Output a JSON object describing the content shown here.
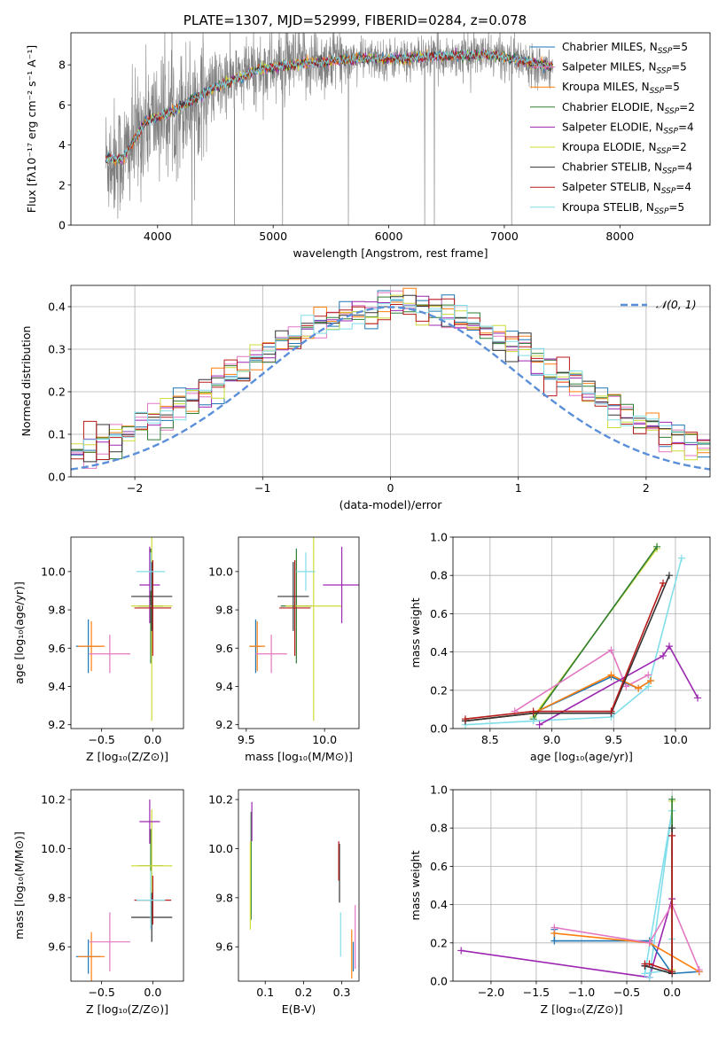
{
  "chart_data": [
    {
      "id": "spectrum",
      "type": "line",
      "title": "PLATE=1307, MJD=52999, FIBERID=0284, z=0.078",
      "xlabel": "wavelength [Angstrom, rest frame]",
      "ylabel": "Flux [fλ10⁻¹⁷ erg cm⁻² s⁻¹ A⁻¹]",
      "xlim": [
        3250,
        8780
      ],
      "ylim": [
        0,
        9.6
      ],
      "xticks": [
        4000,
        5000,
        6000,
        7000,
        8000
      ],
      "yticks": [
        0,
        2,
        4,
        6,
        8
      ],
      "data_trend": {
        "x": [
          3550,
          3700,
          3900,
          4100,
          4500,
          4900,
          5300,
          5700,
          6100,
          6500,
          6900,
          7420
        ],
        "y": [
          3.3,
          3.3,
          5.2,
          5.6,
          6.9,
          7.8,
          8.1,
          8.3,
          8.3,
          8.45,
          8.5,
          7.9
        ]
      },
      "legend": [
        {
          "label": "Chabrier MILES, N",
          "sub": "SSP",
          "n": "=5",
          "color": "#1f77b4"
        },
        {
          "label": "Salpeter MILES, N",
          "sub": "SSP",
          "n": "=5",
          "color": "#e377c2"
        },
        {
          "label": "Kroupa MILES, N",
          "sub": "SSP",
          "n": "=5",
          "color": "#ff7f0e"
        },
        {
          "label": "Chabrier ELODIE, N",
          "sub": "SSP",
          "n": "=2",
          "color": "#2e7d32"
        },
        {
          "label": "Salpeter ELODIE, N",
          "sub": "SSP",
          "n": "=4",
          "color": "#9c27b0"
        },
        {
          "label": "Kroupa ELODIE, N",
          "sub": "SSP",
          "n": "=2",
          "color": "#cddc39"
        },
        {
          "label": "Chabrier STELIB, N",
          "sub": "SSP",
          "n": "=4",
          "color": "#333333"
        },
        {
          "label": "Salpeter STELIB, N",
          "sub": "SSP",
          "n": "=4",
          "color": "#b71c1c"
        },
        {
          "label": "Kroupa STELIB, N",
          "sub": "SSP",
          "n": "=5",
          "color": "#80deea"
        }
      ]
    },
    {
      "id": "residuals",
      "type": "histogram",
      "xlabel": "(data-model)/error",
      "ylabel": "Normed distribution",
      "xlim": [
        -2.5,
        2.5
      ],
      "ylim": [
        0,
        0.45
      ],
      "xticks": [
        -2,
        -1,
        0,
        1,
        2
      ],
      "yticks": [
        0.0,
        0.1,
        0.2,
        0.3,
        0.4
      ],
      "legend_label": "𝒩(0, 1)",
      "normal_curve": {
        "mean": 0,
        "sigma": 1
      },
      "bin_width": 0.1,
      "bin_start": -2.5
    },
    {
      "id": "age_vs_Z",
      "type": "errorbar",
      "xlabel": "Z [log₁₀(Z/Z⊙)]",
      "ylabel": "age  [log₁₀(age/yr)]",
      "xlim": [
        -0.8,
        0.3
      ],
      "ylim": [
        9.18,
        10.18
      ],
      "xticks": [
        -0.5,
        0.0
      ],
      "yticks": [
        9.2,
        9.4,
        9.6,
        9.8,
        10.0
      ],
      "points": [
        {
          "color": "#1f77b4",
          "x": -0.63,
          "xerr": 0.12,
          "y": 9.61,
          "yerr": 0.14
        },
        {
          "color": "#ff7f0e",
          "x": -0.6,
          "xerr": 0.13,
          "y": 9.61,
          "yerr": 0.13
        },
        {
          "color": "#e377c2",
          "x": -0.42,
          "xerr": 0.2,
          "y": 9.57,
          "yerr": 0.1
        },
        {
          "color": "#2e7d32",
          "x": -0.02,
          "xerr": 0.12,
          "y": 9.82,
          "yerr": 0.3
        },
        {
          "color": "#cddc39",
          "x": -0.01,
          "xerr": 0.2,
          "y": 9.82,
          "yerr": 0.6
        },
        {
          "color": "#9c27b0",
          "x": -0.03,
          "xerr": 0.1,
          "y": 9.93,
          "yerr": 0.2
        },
        {
          "color": "#333333",
          "x": -0.01,
          "xerr": 0.2,
          "y": 9.87,
          "yerr": 0.18
        },
        {
          "color": "#b71c1c",
          "x": 0.0,
          "xerr": 0.18,
          "y": 9.81,
          "yerr": 0.25
        },
        {
          "color": "#80deea",
          "x": -0.02,
          "xerr": 0.14,
          "y": 10.0,
          "yerr": 0.1
        }
      ]
    },
    {
      "id": "age_vs_mass",
      "type": "errorbar",
      "xlabel": "mass [log₁₀(M/M⊙)]",
      "ylabel": "",
      "xlim": [
        9.45,
        10.22
      ],
      "ylim": [
        9.18,
        10.18
      ],
      "xticks": [
        9.5,
        10.0
      ],
      "yticks": [
        9.2,
        9.4,
        9.6,
        9.8,
        10.0
      ],
      "points": [
        {
          "color": "#1f77b4",
          "x": 9.56,
          "xerr": 0.04,
          "y": 9.61,
          "yerr": 0.14
        },
        {
          "color": "#ff7f0e",
          "x": 9.57,
          "xerr": 0.05,
          "y": 9.61,
          "yerr": 0.13
        },
        {
          "color": "#e377c2",
          "x": 9.66,
          "xerr": 0.1,
          "y": 9.57,
          "yerr": 0.1
        },
        {
          "color": "#2e7d32",
          "x": 9.82,
          "xerr": 0.1,
          "y": 9.82,
          "yerr": 0.3
        },
        {
          "color": "#cddc39",
          "x": 9.93,
          "xerr": 0.18,
          "y": 9.82,
          "yerr": 0.6
        },
        {
          "color": "#9c27b0",
          "x": 10.11,
          "xerr": 0.12,
          "y": 9.93,
          "yerr": 0.2
        },
        {
          "color": "#333333",
          "x": 9.8,
          "xerr": 0.1,
          "y": 9.87,
          "yerr": 0.18
        },
        {
          "color": "#b71c1c",
          "x": 9.81,
          "xerr": 0.1,
          "y": 9.81,
          "yerr": 0.25
        },
        {
          "color": "#80deea",
          "x": 9.88,
          "xerr": 0.06,
          "y": 10.0,
          "yerr": 0.1
        }
      ]
    },
    {
      "id": "weight_vs_age",
      "type": "line",
      "xlabel": "age  [log₁₀(age/yr)]",
      "ylabel": "mass weight",
      "xlim": [
        8.2,
        10.28
      ],
      "ylim": [
        0,
        1.0
      ],
      "xticks": [
        8.5,
        9.0,
        9.5,
        10.0
      ],
      "yticks": [
        0.0,
        0.2,
        0.4,
        0.6,
        0.8,
        1.0
      ],
      "series": [
        {
          "color": "#cddc39",
          "x": [
            8.85,
            9.85
          ],
          "y": [
            0.06,
            0.94
          ]
        },
        {
          "color": "#2e7d32",
          "x": [
            8.85,
            9.85
          ],
          "y": [
            0.05,
            0.95
          ]
        },
        {
          "color": "#80deea",
          "x": [
            8.3,
            8.85,
            9.48,
            9.78,
            10.05
          ],
          "y": [
            0.02,
            0.04,
            0.06,
            0.22,
            0.89
          ]
        },
        {
          "color": "#e377c2",
          "x": [
            8.7,
            9.48,
            9.6,
            9.78
          ],
          "y": [
            0.09,
            0.41,
            0.22,
            0.28
          ]
        },
        {
          "color": "#1f77b4",
          "x": [
            8.3,
            8.85,
            9.48,
            9.7,
            9.8
          ],
          "y": [
            0.04,
            0.08,
            0.27,
            0.21,
            0.25
          ]
        },
        {
          "color": "#ff7f0e",
          "x": [
            8.3,
            8.85,
            9.48,
            9.7,
            9.8
          ],
          "y": [
            0.04,
            0.08,
            0.28,
            0.21,
            0.25
          ]
        },
        {
          "color": "#9c27b0",
          "x": [
            8.9,
            9.9,
            9.95,
            10.18
          ],
          "y": [
            0.02,
            0.38,
            0.43,
            0.16
          ]
        },
        {
          "color": "#333333",
          "x": [
            8.3,
            8.85,
            9.48,
            9.95
          ],
          "y": [
            0.04,
            0.08,
            0.08,
            0.8
          ]
        },
        {
          "color": "#b71c1c",
          "x": [
            8.3,
            8.85,
            9.48,
            9.9
          ],
          "y": [
            0.05,
            0.09,
            0.09,
            0.76
          ]
        }
      ]
    },
    {
      "id": "mass_vs_Z",
      "type": "errorbar",
      "xlabel": "Z [log₁₀(Z/Z⊙)]",
      "ylabel": "mass [log₁₀(M/M⊙)]",
      "xlim": [
        -0.8,
        0.3
      ],
      "ylim": [
        9.46,
        10.24
      ],
      "xticks": [
        -0.5,
        0.0
      ],
      "yticks": [
        9.6,
        9.8,
        10.0,
        10.2
      ],
      "points": [
        {
          "color": "#1f77b4",
          "x": -0.63,
          "xerr": 0.12,
          "y": 9.56,
          "yerr": 0.07
        },
        {
          "color": "#ff7f0e",
          "x": -0.6,
          "xerr": 0.13,
          "y": 9.56,
          "yerr": 0.1
        },
        {
          "color": "#e377c2",
          "x": -0.42,
          "xerr": 0.2,
          "y": 9.62,
          "yerr": 0.12
        },
        {
          "color": "#2e7d32",
          "x": -0.02,
          "xerr": 0.12,
          "y": 9.93,
          "yerr": 0.15
        },
        {
          "color": "#cddc39",
          "x": -0.01,
          "xerr": 0.2,
          "y": 9.93,
          "yerr": 0.23
        },
        {
          "color": "#9c27b0",
          "x": -0.03,
          "xerr": 0.1,
          "y": 10.11,
          "yerr": 0.09
        },
        {
          "color": "#333333",
          "x": -0.01,
          "xerr": 0.2,
          "y": 9.72,
          "yerr": 0.1
        },
        {
          "color": "#b71c1c",
          "x": 0.0,
          "xerr": 0.18,
          "y": 9.79,
          "yerr": 0.1
        },
        {
          "color": "#80deea",
          "x": -0.02,
          "xerr": 0.14,
          "y": 9.79,
          "yerr": 0.12
        }
      ]
    },
    {
      "id": "mass_vs_ebv",
      "type": "errorbar",
      "xlabel": "E(B-V)",
      "ylabel": "",
      "xlim": [
        0.03,
        0.345
      ],
      "ylim": [
        9.46,
        10.24
      ],
      "xticks": [
        0.1,
        0.2,
        0.3
      ],
      "yticks": [
        9.6,
        9.8,
        10.0,
        10.2
      ],
      "points": [
        {
          "color": "#1f77b4",
          "x": 0.33,
          "xerr": 0.0,
          "y": 9.56,
          "yerr": 0.06
        },
        {
          "color": "#ff7f0e",
          "x": 0.326,
          "xerr": 0.0,
          "y": 9.57,
          "yerr": 0.1
        },
        {
          "color": "#e377c2",
          "x": 0.335,
          "xerr": 0.0,
          "y": 9.64,
          "yerr": 0.13
        },
        {
          "color": "#2e7d32",
          "x": 0.063,
          "xerr": 0.0,
          "y": 9.93,
          "yerr": 0.22
        },
        {
          "color": "#cddc39",
          "x": 0.061,
          "xerr": 0.0,
          "y": 9.85,
          "yerr": 0.18
        },
        {
          "color": "#9c27b0",
          "x": 0.065,
          "xerr": 0.0,
          "y": 10.11,
          "yerr": 0.08
        },
        {
          "color": "#333333",
          "x": 0.294,
          "xerr": 0.0,
          "y": 9.9,
          "yerr": 0.12
        },
        {
          "color": "#b71c1c",
          "x": 0.292,
          "xerr": 0.0,
          "y": 9.95,
          "yerr": 0.08
        },
        {
          "color": "#80deea",
          "x": 0.297,
          "xerr": 0.0,
          "y": 9.65,
          "yerr": 0.09
        }
      ]
    },
    {
      "id": "weight_vs_Z",
      "type": "line",
      "xlabel": "Z [log₁₀(Z/Z⊙)]",
      "ylabel": "mass weight",
      "xlim": [
        -2.42,
        0.42
      ],
      "ylim": [
        0,
        1.0
      ],
      "xticks": [
        -2.0,
        -1.5,
        -1.0,
        -0.5,
        0.0
      ],
      "yticks": [
        0.0,
        0.2,
        0.4,
        0.6,
        0.8,
        1.0
      ],
      "series": [
        {
          "color": "#9c27b0",
          "x": [
            -2.33,
            -0.25,
            0.0
          ],
          "y": [
            0.16,
            0.02,
            0.43
          ]
        },
        {
          "color": "#80deea",
          "x": [
            -0.25,
            0.0,
            -0.3,
            0.0,
            0.0
          ],
          "y": [
            0.02,
            0.89,
            0.04,
            0.06,
            0.22
          ]
        },
        {
          "color": "#1f77b4",
          "x": [
            -1.3,
            -1.3,
            -0.25,
            0.0,
            0.3
          ],
          "y": [
            0.27,
            0.21,
            0.21,
            0.04,
            0.05
          ]
        },
        {
          "color": "#ff7f0e",
          "x": [
            -1.3,
            -0.25,
            0.3
          ],
          "y": [
            0.25,
            0.2,
            0.05
          ]
        },
        {
          "color": "#e377c2",
          "x": [
            -1.3,
            -0.25,
            0.0,
            0.3
          ],
          "y": [
            0.28,
            0.2,
            0.4,
            0.06
          ]
        },
        {
          "color": "#cddc39",
          "x": [
            0.0,
            0.0
          ],
          "y": [
            0.06,
            0.94
          ]
        },
        {
          "color": "#2e7d32",
          "x": [
            0.0,
            0.0
          ],
          "y": [
            0.05,
            0.95
          ]
        },
        {
          "color": "#333333",
          "x": [
            -0.3,
            -0.3,
            0.0,
            0.0
          ],
          "y": [
            0.08,
            0.08,
            0.04,
            0.8
          ]
        },
        {
          "color": "#b71c1c",
          "x": [
            -0.3,
            -0.25,
            0.0,
            0.0
          ],
          "y": [
            0.09,
            0.09,
            0.05,
            0.76
          ]
        }
      ]
    }
  ]
}
